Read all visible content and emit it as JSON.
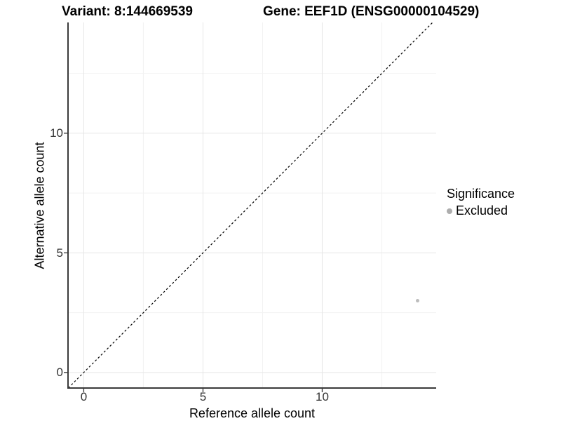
{
  "header": {
    "variant_title": "Variant: 8:144669539",
    "gene_title": "Gene: EEF1D (ENSG00000104529)"
  },
  "chart_data": {
    "type": "scatter",
    "xlabel": "Reference allele count",
    "ylabel": "Alternative allele count",
    "x_ticks": [
      "0",
      "5",
      "10"
    ],
    "y_ticks": [
      "0",
      "5",
      "10"
    ],
    "x_tick_values": [
      0,
      5,
      10
    ],
    "y_tick_values": [
      0,
      5,
      10
    ],
    "x_minor_values": [
      2.5,
      7.5,
      12.5
    ],
    "y_minor_values": [
      2.5,
      7.5,
      12.5
    ],
    "xlim": [
      -0.66,
      14.78
    ],
    "ylim": [
      -0.65,
      14.63
    ],
    "grid": "major+minor",
    "points": [
      {
        "x": 14,
        "y": 3,
        "series": "Excluded",
        "color": "#bdbdbd",
        "radius": 2.5
      }
    ],
    "reference_line": {
      "slope": 1,
      "intercept": 0,
      "style": "dashed",
      "color": "#000000"
    },
    "legend": {
      "title": "Significance",
      "position": "right",
      "items": [
        {
          "label": "Excluded",
          "color": "#adadad"
        }
      ]
    },
    "colors": {
      "grid_major": "#e6e6e6",
      "grid_minor": "#f2f2f2",
      "axis_line": "#3a3a3a",
      "tick_text": "#333333"
    }
  }
}
